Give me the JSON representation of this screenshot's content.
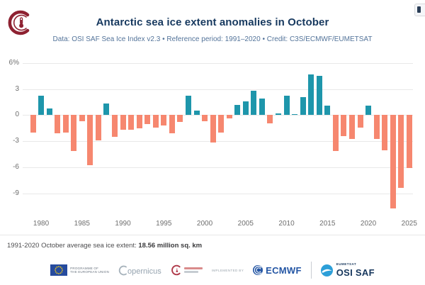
{
  "header": {
    "title": "Antarctic sea ice extent anomalies in October",
    "subtitle": "Data: OSI SAF Sea Ice Index v2.3 • Reference period: 1991–2020 • Credit: C3S/ECMWF/EUMETSAT"
  },
  "chart_data": {
    "type": "bar",
    "title": "Antarctic sea ice extent anomalies in October",
    "xlabel": "",
    "ylabel": "%",
    "x": [
      1979,
      1980,
      1981,
      1982,
      1983,
      1984,
      1985,
      1986,
      1987,
      1988,
      1989,
      1990,
      1991,
      1992,
      1993,
      1994,
      1995,
      1996,
      1997,
      1998,
      1999,
      2000,
      2001,
      2002,
      2003,
      2004,
      2005,
      2006,
      2007,
      2008,
      2009,
      2010,
      2011,
      2012,
      2013,
      2014,
      2015,
      2016,
      2017,
      2018,
      2019,
      2020,
      2021,
      2022,
      2023,
      2024,
      2025
    ],
    "values": [
      -2.0,
      2.2,
      0.8,
      -2.1,
      -2.0,
      -4.1,
      -0.7,
      -5.7,
      -2.9,
      1.3,
      -2.5,
      -1.7,
      -1.7,
      -1.5,
      -1.0,
      -1.4,
      -1.2,
      -2.1,
      -0.8,
      2.2,
      0.5,
      -0.7,
      -3.1,
      -2.0,
      -0.4,
      1.2,
      1.6,
      2.8,
      1.9,
      -0.9,
      0.2,
      2.2,
      0.1,
      2.1,
      4.7,
      4.5,
      1.1,
      -4.1,
      -2.4,
      -2.7,
      -1.4,
      1.1,
      -2.7,
      -4.0,
      -10.7,
      -8.3,
      -6.1
    ],
    "ytick_values": [
      6,
      3,
      0,
      -3,
      -6,
      -9
    ],
    "ytick_labels": [
      "6%",
      "3",
      "0",
      "-3",
      "-6",
      "-9"
    ],
    "xtick_values": [
      1980,
      1985,
      1990,
      1995,
      2000,
      2005,
      2010,
      2015,
      2020,
      2025
    ],
    "ylim": [
      -12,
      6.3
    ],
    "grid": true,
    "legend": "none",
    "colors": {
      "positive": "#1e96ab",
      "negative": "#f6876f"
    }
  },
  "footer": {
    "caption_prefix": "1991-2020 October average sea ice extent: ",
    "caption_value": "18.56 million sq. km",
    "logos": {
      "eu_line1": "PROGRAMME OF",
      "eu_line2": "THE EUROPEAN UNION",
      "copernicus": "opernicus",
      "implemented_by": "IMPLEMENTED BY",
      "ecmwf": "ECMWF",
      "eumetsat": "EUMETSAT",
      "osisaf": "OSI SAF"
    }
  }
}
